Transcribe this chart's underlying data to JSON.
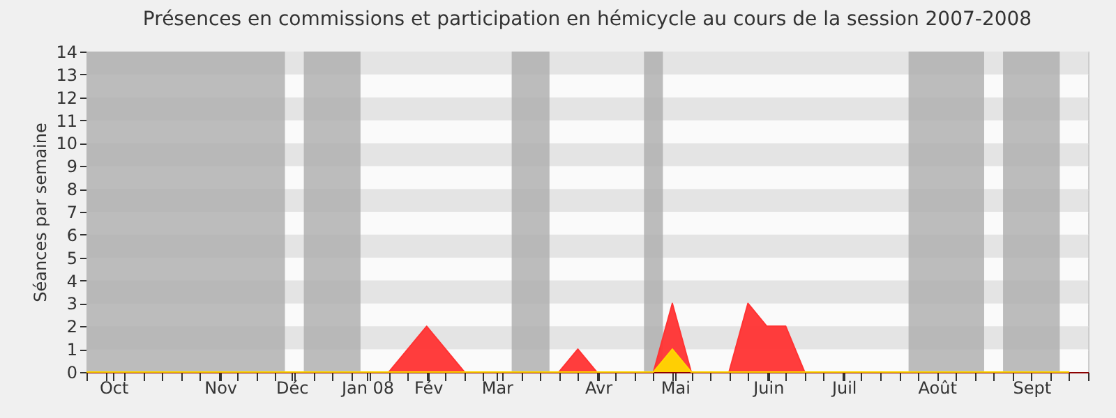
{
  "chart_data": {
    "type": "area",
    "title": "Présences en commissions et participation en hémicycle au cours de la session 2007-2008",
    "ylabel": "Séances par semaine",
    "x": [
      "2007-10-01",
      "2007-10-08",
      "2007-10-15",
      "2007-10-22",
      "2007-10-29",
      "2007-11-05",
      "2007-11-12",
      "2007-11-19",
      "2007-11-26",
      "2007-12-03",
      "2007-12-10",
      "2007-12-17",
      "2007-12-24",
      "2007-12-31",
      "2008-01-07",
      "2008-01-14",
      "2008-01-21",
      "2008-01-28",
      "2008-02-04",
      "2008-02-11",
      "2008-02-18",
      "2008-02-25",
      "2008-03-03",
      "2008-03-10",
      "2008-03-17",
      "2008-03-24",
      "2008-03-31",
      "2008-04-07",
      "2008-04-14",
      "2008-04-21",
      "2008-04-28",
      "2008-05-05",
      "2008-05-12",
      "2008-05-19",
      "2008-05-26",
      "2008-06-02",
      "2008-06-09",
      "2008-06-16",
      "2008-06-23",
      "2008-06-30",
      "2008-07-07",
      "2008-07-14",
      "2008-07-21",
      "2008-07-28",
      "2008-08-04",
      "2008-08-11",
      "2008-08-18",
      "2008-08-25",
      "2008-09-01",
      "2008-09-08",
      "2008-09-15",
      "2008-09-22",
      "2008-09-29"
    ],
    "series": [
      {
        "color": "#ff3333",
        "values": [
          0,
          0,
          0,
          0,
          0,
          0,
          0,
          0,
          0,
          0,
          0,
          0,
          0,
          0,
          0,
          0,
          0,
          1,
          2,
          1,
          0,
          0,
          0,
          0,
          0,
          0,
          1,
          0,
          0,
          0,
          0,
          3,
          0,
          0,
          0,
          3,
          2,
          2,
          0,
          0,
          0,
          0,
          0,
          0,
          0,
          0,
          0,
          0,
          0,
          0,
          0,
          0,
          0
        ]
      },
      {
        "color": "#ffd700",
        "values": [
          0,
          0,
          0,
          0,
          0,
          0,
          0,
          0,
          0,
          0,
          0,
          0,
          0,
          0,
          0,
          0,
          0,
          0,
          0,
          0,
          0,
          0,
          0,
          0,
          0,
          0,
          0,
          0,
          0,
          0,
          0,
          1,
          0,
          0,
          0,
          0,
          0,
          0,
          0,
          0,
          0,
          0,
          0,
          0,
          0,
          0,
          0,
          0,
          0,
          0,
          0,
          0,
          0
        ]
      }
    ],
    "bands": [
      {
        "axis": "x",
        "from": "2007-10-01",
        "to": "2007-12-13T12:00",
        "color": "#b0b0b0"
      },
      {
        "axis": "x",
        "from": "2007-12-20T12:00",
        "to": "2008-01-10T12:00",
        "color": "#b0b0b0"
      },
      {
        "axis": "x",
        "from": "2008-03-06T12:00",
        "to": "2008-03-20T12:00",
        "color": "#b0b0b0"
      },
      {
        "axis": "x",
        "from": "2008-04-24T12:00",
        "to": "2008-05-01T12:00",
        "color": "#b0b0b0"
      },
      {
        "axis": "x",
        "from": "2008-07-31T12:00",
        "to": "2008-08-28T12:00",
        "color": "#b0b0b0"
      },
      {
        "axis": "x",
        "from": "2008-09-04T12:00",
        "to": "2008-09-25T12:00",
        "color": "#b0b0b0"
      }
    ],
    "xlim": [
      "2007-10-01",
      "2008-10-06"
    ],
    "xticks": [
      {
        "value": "2007-10-01",
        "label": null
      },
      {
        "value": "2007-10-08",
        "label": null
      },
      {
        "value": "2007-10-15",
        "label": null
      },
      {
        "value": "2007-10-22",
        "label": null
      },
      {
        "value": "2007-10-29",
        "label": null
      },
      {
        "value": "2007-11-05",
        "label": null
      },
      {
        "value": "2007-11-12",
        "label": null
      },
      {
        "value": "2007-11-19",
        "label": null
      },
      {
        "value": "2007-11-26",
        "label": null
      },
      {
        "value": "2007-12-03",
        "label": null
      },
      {
        "value": "2007-12-10",
        "label": null
      },
      {
        "value": "2007-12-17",
        "label": null
      },
      {
        "value": "2007-12-24",
        "label": null
      },
      {
        "value": "2007-12-31",
        "label": null
      },
      {
        "value": "2008-01-07",
        "label": null
      },
      {
        "value": "2008-01-14",
        "label": null
      },
      {
        "value": "2008-01-21",
        "label": null
      },
      {
        "value": "2008-01-28",
        "label": null
      },
      {
        "value": "2008-02-04",
        "label": null
      },
      {
        "value": "2008-02-11",
        "label": null
      },
      {
        "value": "2008-02-18",
        "label": null
      },
      {
        "value": "2008-02-25",
        "label": null
      },
      {
        "value": "2008-03-03",
        "label": null
      },
      {
        "value": "2008-03-10",
        "label": null
      },
      {
        "value": "2008-03-17",
        "label": null
      },
      {
        "value": "2008-03-24",
        "label": null
      },
      {
        "value": "2008-03-31",
        "label": null
      },
      {
        "value": "2008-04-07",
        "label": null
      },
      {
        "value": "2008-04-14",
        "label": null
      },
      {
        "value": "2008-04-21",
        "label": null
      },
      {
        "value": "2008-04-28",
        "label": null
      },
      {
        "value": "2008-05-05",
        "label": null
      },
      {
        "value": "2008-05-12",
        "label": null
      },
      {
        "value": "2008-05-19",
        "label": null
      },
      {
        "value": "2008-05-26",
        "label": null
      },
      {
        "value": "2008-06-02",
        "label": null
      },
      {
        "value": "2008-06-09",
        "label": null
      },
      {
        "value": "2008-06-16",
        "label": null
      },
      {
        "value": "2008-06-23",
        "label": null
      },
      {
        "value": "2008-06-30",
        "label": null
      },
      {
        "value": "2008-07-07",
        "label": null
      },
      {
        "value": "2008-07-14",
        "label": null
      },
      {
        "value": "2008-07-21",
        "label": null
      },
      {
        "value": "2008-07-28",
        "label": null
      },
      {
        "value": "2008-08-04",
        "label": null
      },
      {
        "value": "2008-08-11",
        "label": null
      },
      {
        "value": "2008-08-18",
        "label": null
      },
      {
        "value": "2008-08-25",
        "label": null
      },
      {
        "value": "2008-09-01",
        "label": null
      },
      {
        "value": "2008-09-08",
        "label": null
      },
      {
        "value": "2008-09-15",
        "label": null
      },
      {
        "value": "2008-09-22",
        "label": null
      },
      {
        "value": "2008-09-29",
        "label": null
      },
      {
        "value": "2008-10-06",
        "label": null
      },
      {
        "value": "2007-10-11",
        "label": "Oct"
      },
      {
        "value": "2007-11-19T12:00",
        "label": "Nov"
      },
      {
        "value": "2007-12-16",
        "label": "Déc"
      },
      {
        "value": "2008-01-13",
        "label": "Jan 08"
      },
      {
        "value": "2008-02-04T12:00",
        "label": "Fév"
      },
      {
        "value": "2008-03-01",
        "label": "Mar"
      },
      {
        "value": "2008-04-07T12:00",
        "label": "Avr"
      },
      {
        "value": "2008-05-06",
        "label": "Mai"
      },
      {
        "value": "2008-06-09T12:00",
        "label": "Juin"
      },
      {
        "value": "2008-07-07T12:00",
        "label": "Juil"
      },
      {
        "value": "2008-08-11",
        "label": "Août"
      },
      {
        "value": "2008-09-15",
        "label": "Sept"
      }
    ],
    "ylim": [
      0,
      14
    ],
    "yticks": [
      0,
      1,
      2,
      3,
      4,
      5,
      6,
      7,
      8,
      9,
      10,
      11,
      12,
      13,
      14
    ],
    "grid": "y"
  }
}
